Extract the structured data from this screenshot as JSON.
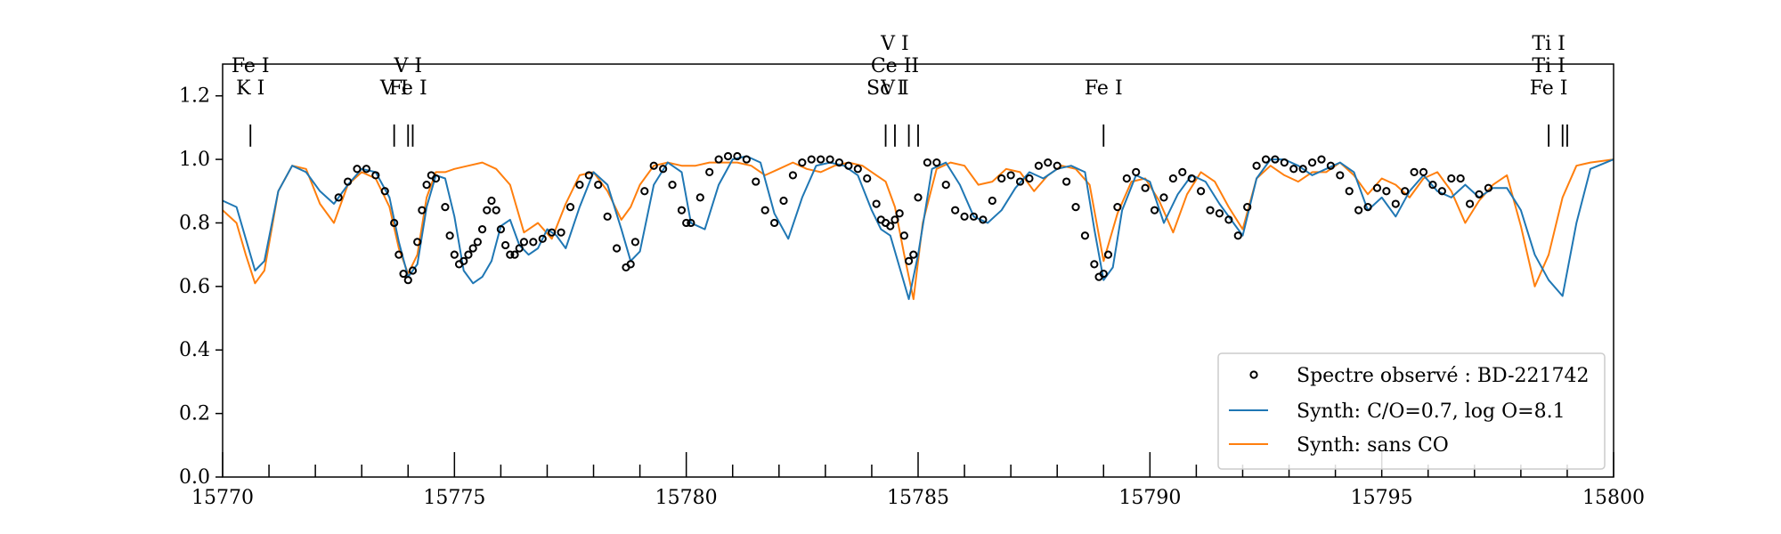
{
  "chart_data": {
    "type": "line",
    "title": "",
    "xlabel": "",
    "ylabel": "",
    "xlim": [
      15770,
      15800
    ],
    "ylim": [
      0,
      1.3
    ],
    "x_ticks": [
      15770,
      15775,
      15780,
      15785,
      15790,
      15795,
      15800
    ],
    "x_tick_labels": [
      "15770",
      "15775",
      "15780",
      "15785",
      "15790",
      "15795",
      "15800"
    ],
    "x_minor_step": 1,
    "y_ticks": [
      0.0,
      0.2,
      0.4,
      0.6,
      0.8,
      1.0,
      1.2
    ],
    "y_tick_labels": [
      "0.0",
      "0.2",
      "0.4",
      "0.6",
      "0.8",
      "1.0",
      "1.2"
    ],
    "grid": false,
    "legend_position": "bottom-right",
    "colors": {
      "observed": "#000000",
      "synth_co": "#1f77b4",
      "synth_noco": "#ff7f0e"
    },
    "series": [
      {
        "name": "Spectre observé : BD-221742",
        "style": "open-circle-markers",
        "x": [
          15772.5,
          15772.7,
          15772.9,
          15773.1,
          15773.3,
          15773.5,
          15773.7,
          15773.8,
          15773.9,
          15774.0,
          15774.1,
          15774.2,
          15774.3,
          15774.4,
          15774.5,
          15774.6,
          15774.8,
          15774.9,
          15775.0,
          15775.1,
          15775.2,
          15775.3,
          15775.4,
          15775.5,
          15775.6,
          15775.7,
          15775.8,
          15775.9,
          15776.0,
          15776.1,
          15776.2,
          15776.3,
          15776.4,
          15776.5,
          15776.7,
          15776.9,
          15777.1,
          15777.3,
          15777.5,
          15777.7,
          15777.9,
          15778.1,
          15778.3,
          15778.5,
          15778.7,
          15778.8,
          15778.9,
          15779.1,
          15779.3,
          15779.5,
          15779.7,
          15779.9,
          15780.0,
          15780.1,
          15780.3,
          15780.5,
          15780.7,
          15780.9,
          15781.1,
          15781.3,
          15781.5,
          15781.7,
          15781.9,
          15782.1,
          15782.3,
          15782.5,
          15782.7,
          15782.9,
          15783.1,
          15783.3,
          15783.5,
          15783.7,
          15783.9,
          15784.1,
          15784.2,
          15784.3,
          15784.4,
          15784.5,
          15784.6,
          15784.7,
          15784.8,
          15784.9,
          15785.0,
          15785.2,
          15785.4,
          15785.6,
          15785.8,
          15786.0,
          15786.2,
          15786.4,
          15786.6,
          15786.8,
          15787.0,
          15787.2,
          15787.4,
          15787.6,
          15787.8,
          15788.0,
          15788.2,
          15788.4,
          15788.6,
          15788.8,
          15788.9,
          15789.0,
          15789.1,
          15789.3,
          15789.5,
          15789.7,
          15789.9,
          15790.1,
          15790.3,
          15790.5,
          15790.7,
          15790.9,
          15791.1,
          15791.3,
          15791.5,
          15791.7,
          15791.9,
          15792.1,
          15792.3,
          15792.5,
          15792.7,
          15792.9,
          15793.1,
          15793.3,
          15793.5,
          15793.7,
          15793.9,
          15794.1,
          15794.3,
          15794.5,
          15794.7,
          15794.9,
          15795.1,
          15795.3,
          15795.5,
          15795.7,
          15795.9,
          15796.1,
          15796.3,
          15796.5,
          15796.7,
          15796.9,
          15797.1,
          15797.3
        ],
        "y": [
          0.88,
          0.93,
          0.97,
          0.97,
          0.95,
          0.9,
          0.8,
          0.7,
          0.64,
          0.62,
          0.65,
          0.74,
          0.84,
          0.92,
          0.95,
          0.94,
          0.85,
          0.76,
          0.7,
          0.67,
          0.68,
          0.7,
          0.72,
          0.74,
          0.78,
          0.84,
          0.87,
          0.84,
          0.78,
          0.73,
          0.7,
          0.7,
          0.72,
          0.74,
          0.74,
          0.75,
          0.77,
          0.77,
          0.85,
          0.92,
          0.95,
          0.92,
          0.82,
          0.72,
          0.66,
          0.67,
          0.74,
          0.9,
          0.98,
          0.97,
          0.92,
          0.84,
          0.8,
          0.8,
          0.88,
          0.96,
          1.0,
          1.01,
          1.01,
          1.0,
          0.93,
          0.84,
          0.8,
          0.87,
          0.95,
          0.99,
          1.0,
          1.0,
          1.0,
          0.99,
          0.98,
          0.97,
          0.94,
          0.86,
          0.81,
          0.8,
          0.79,
          0.81,
          0.83,
          0.76,
          0.68,
          0.7,
          0.88,
          0.99,
          0.99,
          0.92,
          0.84,
          0.82,
          0.82,
          0.81,
          0.87,
          0.94,
          0.95,
          0.93,
          0.94,
          0.98,
          0.99,
          0.98,
          0.93,
          0.85,
          0.76,
          0.67,
          0.63,
          0.64,
          0.7,
          0.85,
          0.94,
          0.96,
          0.91,
          0.84,
          0.88,
          0.94,
          0.96,
          0.94,
          0.9,
          0.84,
          0.83,
          0.81,
          0.76,
          0.85,
          0.98,
          1.0,
          1.0,
          0.99,
          0.97,
          0.97,
          0.99,
          1.0,
          0.98,
          0.95,
          0.9,
          0.84,
          0.85,
          0.91,
          0.9,
          0.86,
          0.9,
          0.96,
          0.96,
          0.92,
          0.9,
          0.94,
          0.94,
          0.86,
          0.89,
          0.91
        ]
      },
      {
        "name": "Synth: C/O=0.7, log O=8.1",
        "style": "line",
        "x": [
          15770,
          15770.3,
          15770.5,
          15770.7,
          15770.9,
          15771.2,
          15771.5,
          15771.8,
          15772.1,
          15772.4,
          15772.7,
          15773.0,
          15773.3,
          15773.6,
          15773.8,
          15774.0,
          15774.2,
          15774.4,
          15774.6,
          15774.8,
          15775.0,
          15775.2,
          15775.4,
          15775.6,
          15775.8,
          15776.0,
          15776.2,
          15776.4,
          15776.6,
          15776.8,
          15777.0,
          15777.2,
          15777.4,
          15777.7,
          15778.0,
          15778.3,
          15778.6,
          15778.8,
          15779.0,
          15779.3,
          15779.6,
          15779.9,
          15780.1,
          15780.4,
          15780.7,
          15781.0,
          15781.3,
          15781.6,
          15781.9,
          15782.2,
          15782.5,
          15782.8,
          15783.1,
          15783.4,
          15783.7,
          15784.0,
          15784.2,
          15784.4,
          15784.6,
          15784.8,
          15785.0,
          15785.3,
          15785.6,
          15785.9,
          15786.2,
          15786.5,
          15786.8,
          15787.1,
          15787.4,
          15787.7,
          15788.0,
          15788.3,
          15788.6,
          15788.8,
          15789.0,
          15789.2,
          15789.4,
          15789.7,
          15790.0,
          15790.3,
          15790.6,
          15790.9,
          15791.2,
          15791.5,
          15791.8,
          15792.0,
          15792.3,
          15792.6,
          15792.9,
          15793.2,
          15793.5,
          15793.8,
          15794.1,
          15794.4,
          15794.7,
          15795.0,
          15795.3,
          15795.6,
          15795.9,
          15796.2,
          15796.5,
          15796.8,
          15797.1,
          15797.4,
          15797.7,
          15798.0,
          15798.3,
          15798.6,
          15798.9,
          15799.2,
          15799.5,
          15800
        ],
        "y": [
          0.87,
          0.85,
          0.75,
          0.65,
          0.68,
          0.9,
          0.98,
          0.96,
          0.9,
          0.86,
          0.92,
          0.97,
          0.96,
          0.88,
          0.74,
          0.63,
          0.67,
          0.85,
          0.95,
          0.94,
          0.82,
          0.65,
          0.61,
          0.63,
          0.68,
          0.79,
          0.81,
          0.73,
          0.7,
          0.72,
          0.78,
          0.76,
          0.72,
          0.85,
          0.96,
          0.92,
          0.78,
          0.68,
          0.71,
          0.92,
          0.99,
          0.96,
          0.8,
          0.78,
          0.92,
          1.0,
          1.01,
          0.99,
          0.83,
          0.75,
          0.88,
          0.98,
          0.99,
          0.98,
          0.95,
          0.84,
          0.78,
          0.76,
          0.66,
          0.56,
          0.7,
          0.97,
          0.99,
          0.92,
          0.82,
          0.8,
          0.84,
          0.91,
          0.96,
          0.94,
          0.97,
          0.98,
          0.96,
          0.78,
          0.62,
          0.66,
          0.84,
          0.95,
          0.93,
          0.8,
          0.89,
          0.95,
          0.93,
          0.86,
          0.8,
          0.76,
          0.94,
          1.0,
          1.0,
          0.98,
          0.95,
          0.97,
          0.99,
          0.96,
          0.84,
          0.88,
          0.82,
          0.9,
          0.95,
          0.9,
          0.88,
          0.92,
          0.88,
          0.91,
          0.91,
          0.84,
          0.7,
          0.62,
          0.57,
          0.8,
          0.97,
          1.0
        ]
      },
      {
        "name": "Synth: sans CO",
        "style": "line",
        "x": [
          15770,
          15770.3,
          15770.5,
          15770.7,
          15770.9,
          15771.2,
          15771.5,
          15771.8,
          15772.1,
          15772.4,
          15772.7,
          15773.0,
          15773.3,
          15773.6,
          15773.8,
          15774.0,
          15774.2,
          15774.4,
          15774.6,
          15774.8,
          15775.0,
          15775.3,
          15775.6,
          15775.9,
          15776.2,
          15776.5,
          15776.8,
          15777.1,
          15777.4,
          15777.7,
          15778.0,
          15778.3,
          15778.6,
          15778.8,
          15779.0,
          15779.3,
          15779.6,
          15779.9,
          15780.2,
          15780.5,
          15780.8,
          15781.1,
          15781.4,
          15781.7,
          15782.0,
          15782.3,
          15782.6,
          15782.9,
          15783.2,
          15783.5,
          15783.8,
          15784.1,
          15784.3,
          15784.5,
          15784.7,
          15784.9,
          15785.1,
          15785.4,
          15785.7,
          15786.0,
          15786.3,
          15786.6,
          15786.9,
          15787.2,
          15787.5,
          15787.8,
          15788.1,
          15788.4,
          15788.7,
          15789.0,
          15789.3,
          15789.6,
          15789.9,
          15790.2,
          15790.5,
          15790.8,
          15791.1,
          15791.4,
          15791.7,
          15792.0,
          15792.3,
          15792.6,
          15792.9,
          15793.2,
          15793.5,
          15793.8,
          15794.1,
          15794.4,
          15794.7,
          15795.0,
          15795.3,
          15795.6,
          15795.9,
          15796.2,
          15796.5,
          15796.8,
          15797.1,
          15797.4,
          15797.7,
          15798.0,
          15798.3,
          15798.6,
          15798.9,
          15799.2,
          15799.5,
          15800
        ],
        "y": [
          0.84,
          0.8,
          0.7,
          0.61,
          0.65,
          0.9,
          0.98,
          0.97,
          0.86,
          0.8,
          0.92,
          0.96,
          0.94,
          0.85,
          0.72,
          0.64,
          0.7,
          0.88,
          0.96,
          0.96,
          0.97,
          0.98,
          0.99,
          0.97,
          0.92,
          0.77,
          0.8,
          0.75,
          0.86,
          0.95,
          0.96,
          0.9,
          0.81,
          0.85,
          0.92,
          0.98,
          0.99,
          0.98,
          0.98,
          0.99,
          0.99,
          0.99,
          0.98,
          0.95,
          0.97,
          0.99,
          0.97,
          0.96,
          0.98,
          0.99,
          0.98,
          0.95,
          0.93,
          0.85,
          0.7,
          0.56,
          0.8,
          0.97,
          0.99,
          0.98,
          0.92,
          0.93,
          0.97,
          0.96,
          0.9,
          0.95,
          0.98,
          0.97,
          0.92,
          0.68,
          0.83,
          0.93,
          0.94,
          0.87,
          0.77,
          0.89,
          0.96,
          0.93,
          0.85,
          0.78,
          0.94,
          0.98,
          0.95,
          0.93,
          0.96,
          0.96,
          0.99,
          0.95,
          0.89,
          0.94,
          0.92,
          0.88,
          0.94,
          0.96,
          0.9,
          0.8,
          0.87,
          0.92,
          0.95,
          0.79,
          0.6,
          0.7,
          0.88,
          0.98,
          0.99,
          1.0
        ]
      }
    ],
    "line_ids": [
      {
        "x": 15770.6,
        "labels": [
          "K I",
          "Fe I"
        ]
      },
      {
        "x": 15773.7,
        "labels": [
          "V I"
        ]
      },
      {
        "x": 15774.0,
        "labels": [
          "Fe I",
          "V I"
        ]
      },
      {
        "x": 15774.1,
        "labels": []
      },
      {
        "x": 15784.3,
        "labels": [
          "Sc I"
        ]
      },
      {
        "x": 15784.5,
        "labels": [
          "V I",
          "Ce II",
          "V I"
        ]
      },
      {
        "x": 15784.8,
        "labels": []
      },
      {
        "x": 15785.0,
        "labels": []
      },
      {
        "x": 15789.0,
        "labels": [
          "Fe I"
        ]
      },
      {
        "x": 15798.6,
        "labels": [
          "Fe I",
          "Ti I",
          "Ti I"
        ]
      },
      {
        "x": 15798.9,
        "labels": []
      },
      {
        "x": 15799.0,
        "labels": []
      }
    ]
  }
}
